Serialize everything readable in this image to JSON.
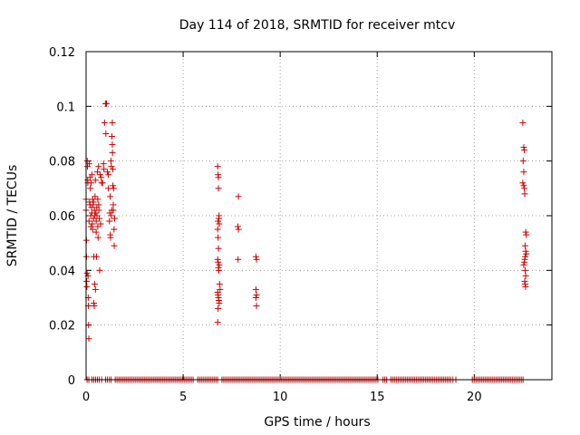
{
  "chart_data": {
    "type": "scatter",
    "title": "Day 114 of 2018, SRMTID for receiver mtcv",
    "xlabel": "GPS time / hours",
    "ylabel": "SRMTID / TECUs",
    "xlim": [
      0,
      24
    ],
    "ylim": [
      0,
      0.12
    ],
    "xticks": [
      0,
      5,
      10,
      15,
      20
    ],
    "yticks": [
      0,
      0.02,
      0.04,
      0.06,
      0.08,
      0.1,
      0.12
    ],
    "xtick_labels": [
      "0",
      "5",
      "10",
      "15",
      "20"
    ],
    "ytick_labels": [
      "0",
      "0.02",
      "0.04",
      "0.06",
      "0.08",
      "0.1",
      "0.12"
    ],
    "grid": true,
    "marker": "+",
    "color": "#cc0000",
    "series": [
      {
        "points": [
          [
            0.0,
            0.066
          ],
          [
            0.0,
            0.062
          ],
          [
            0.02,
            0.051
          ],
          [
            0.02,
            0.045
          ],
          [
            0.03,
            0.036
          ],
          [
            0.04,
            0.034
          ],
          [
            0.05,
            0.039
          ],
          [
            0.06,
            0.08
          ],
          [
            0.07,
            0.078
          ],
          [
            0.08,
            0.073
          ],
          [
            0.09,
            0.072
          ],
          [
            0.1,
            0.038
          ],
          [
            0.11,
            0.03
          ],
          [
            0.12,
            0.027
          ],
          [
            0.13,
            0.02
          ],
          [
            0.14,
            0.015
          ],
          [
            0.15,
            0.058
          ],
          [
            0.16,
            0.079
          ],
          [
            0.18,
            0.065
          ],
          [
            0.2,
            0.074
          ],
          [
            0.2,
            0.064
          ],
          [
            0.22,
            0.07
          ],
          [
            0.24,
            0.06
          ],
          [
            0.25,
            0.056
          ],
          [
            0.26,
            0.072
          ],
          [
            0.28,
            0.063
          ],
          [
            0.3,
            0.075
          ],
          [
            0.3,
            0.061
          ],
          [
            0.32,
            0.057
          ],
          [
            0.34,
            0.066
          ],
          [
            0.34,
            0.055
          ],
          [
            0.36,
            0.064
          ],
          [
            0.38,
            0.059
          ],
          [
            0.38,
            0.065
          ],
          [
            0.4,
            0.045
          ],
          [
            0.4,
            0.028
          ],
          [
            0.42,
            0.027
          ],
          [
            0.43,
            0.062
          ],
          [
            0.44,
            0.035
          ],
          [
            0.45,
            0.06
          ],
          [
            0.46,
            0.067
          ],
          [
            0.48,
            0.073
          ],
          [
            0.48,
            0.033
          ],
          [
            0.5,
            0.061
          ],
          [
            0.52,
            0.058
          ],
          [
            0.52,
            0.054
          ],
          [
            0.54,
            0.045
          ],
          [
            0.55,
            0.063
          ],
          [
            0.56,
            0.06
          ],
          [
            0.58,
            0.076
          ],
          [
            0.6,
            0.066
          ],
          [
            0.6,
            0.056
          ],
          [
            0.62,
            0.052
          ],
          [
            0.64,
            0.078
          ],
          [
            0.65,
            0.064
          ],
          [
            0.66,
            0.062
          ],
          [
            0.68,
            0.059
          ],
          [
            0.7,
            0.04
          ],
          [
            0.72,
            0.075
          ],
          [
            0.75,
            0.057
          ],
          [
            0.78,
            0.074
          ],
          [
            0.8,
            0.072
          ],
          [
            0.85,
            0.072
          ],
          [
            0.9,
            0.079
          ],
          [
            0.92,
            0.077
          ],
          [
            0.95,
            0.094
          ],
          [
            1.0,
            0.101
          ],
          [
            1.02,
            0.09
          ],
          [
            1.05,
            0.101
          ],
          [
            1.1,
            0.076
          ],
          [
            1.15,
            0.075
          ],
          [
            1.15,
            0.07
          ],
          [
            1.2,
            0.058
          ],
          [
            1.22,
            0.061
          ],
          [
            1.24,
            0.067
          ],
          [
            1.25,
            0.053
          ],
          [
            1.26,
            0.052
          ],
          [
            1.28,
            0.08
          ],
          [
            1.3,
            0.078
          ],
          [
            1.3,
            0.06
          ],
          [
            1.32,
            0.062
          ],
          [
            1.33,
            0.089
          ],
          [
            1.35,
            0.094
          ],
          [
            1.35,
            0.086
          ],
          [
            1.36,
            0.083
          ],
          [
            1.38,
            0.077
          ],
          [
            1.38,
            0.071
          ],
          [
            1.4,
            0.064
          ],
          [
            1.4,
            0.062
          ],
          [
            1.42,
            0.07
          ],
          [
            1.44,
            0.055
          ],
          [
            1.45,
            0.049
          ],
          [
            1.47,
            0.059
          ],
          [
            6.78,
            0.078
          ],
          [
            6.8,
            0.075
          ],
          [
            6.82,
            0.074
          ],
          [
            6.82,
            0.07
          ],
          [
            6.8,
            0.058
          ],
          [
            6.78,
            0.055
          ],
          [
            6.8,
            0.052
          ],
          [
            6.82,
            0.048
          ],
          [
            6.84,
            0.059
          ],
          [
            6.85,
            0.06
          ],
          [
            6.86,
            0.057
          ],
          [
            6.78,
            0.044
          ],
          [
            6.8,
            0.043
          ],
          [
            6.82,
            0.041
          ],
          [
            6.84,
            0.04
          ],
          [
            6.86,
            0.042
          ],
          [
            6.78,
            0.032
          ],
          [
            6.8,
            0.031
          ],
          [
            6.82,
            0.03
          ],
          [
            6.84,
            0.029
          ],
          [
            6.86,
            0.028
          ],
          [
            6.8,
            0.026
          ],
          [
            6.78,
            0.021
          ],
          [
            6.88,
            0.035
          ],
          [
            6.9,
            0.033
          ],
          [
            7.85,
            0.067
          ],
          [
            7.82,
            0.056
          ],
          [
            7.85,
            0.055
          ],
          [
            7.83,
            0.044
          ],
          [
            8.75,
            0.045
          ],
          [
            8.78,
            0.044
          ],
          [
            8.75,
            0.033
          ],
          [
            8.78,
            0.031
          ],
          [
            8.75,
            0.03
          ],
          [
            8.78,
            0.027
          ],
          [
            22.5,
            0.094
          ],
          [
            22.55,
            0.085
          ],
          [
            22.58,
            0.084
          ],
          [
            22.52,
            0.08
          ],
          [
            22.55,
            0.076
          ],
          [
            22.5,
            0.072
          ],
          [
            22.55,
            0.071
          ],
          [
            22.58,
            0.07
          ],
          [
            22.6,
            0.068
          ],
          [
            22.65,
            0.054
          ],
          [
            22.68,
            0.053
          ],
          [
            22.62,
            0.049
          ],
          [
            22.65,
            0.047
          ],
          [
            22.68,
            0.046
          ],
          [
            22.62,
            0.045
          ],
          [
            22.6,
            0.044
          ],
          [
            22.58,
            0.043
          ],
          [
            22.55,
            0.042
          ],
          [
            22.62,
            0.04
          ],
          [
            22.65,
            0.038
          ],
          [
            22.6,
            0.036
          ],
          [
            22.62,
            0.035
          ],
          [
            22.64,
            0.034
          ]
        ],
        "zero_ranges": [
          [
            0.05,
            0.2
          ],
          [
            0.3,
            0.75
          ],
          [
            0.8,
            0.85
          ],
          [
            1.0,
            1.1
          ],
          [
            1.2,
            1.3
          ],
          [
            1.5,
            5.6
          ],
          [
            5.75,
            6.8
          ],
          [
            7.0,
            15.1
          ],
          [
            15.3,
            15.5
          ],
          [
            15.7,
            18.8
          ],
          [
            18.9,
            18.95
          ],
          [
            19.05,
            19.08
          ],
          [
            19.9,
            22.6
          ]
        ]
      }
    ]
  }
}
